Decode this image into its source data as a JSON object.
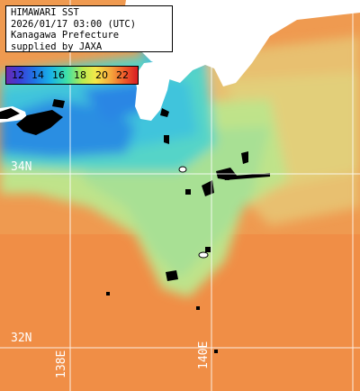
{
  "header": {
    "line1": "HIMAWARI SST",
    "line2": "2026/01/17 03:00 (UTC)",
    "line3": "Kanagawa Prefecture",
    "line4": "supplied by JAXA"
  },
  "legend": {
    "ticks": [
      "12",
      "14",
      "16",
      "18",
      "20",
      "22"
    ]
  },
  "grid": {
    "lat_labels": [
      "34N",
      "32N"
    ],
    "lon_labels": [
      "138E",
      "140E"
    ]
  },
  "colors": {
    "cold": "#1e70e0",
    "cool": "#38c8d8",
    "mild": "#9ce0a0",
    "warm": "#e8d878",
    "hot": "#f09848",
    "land": "#ffffff",
    "no_data": "#000000"
  }
}
